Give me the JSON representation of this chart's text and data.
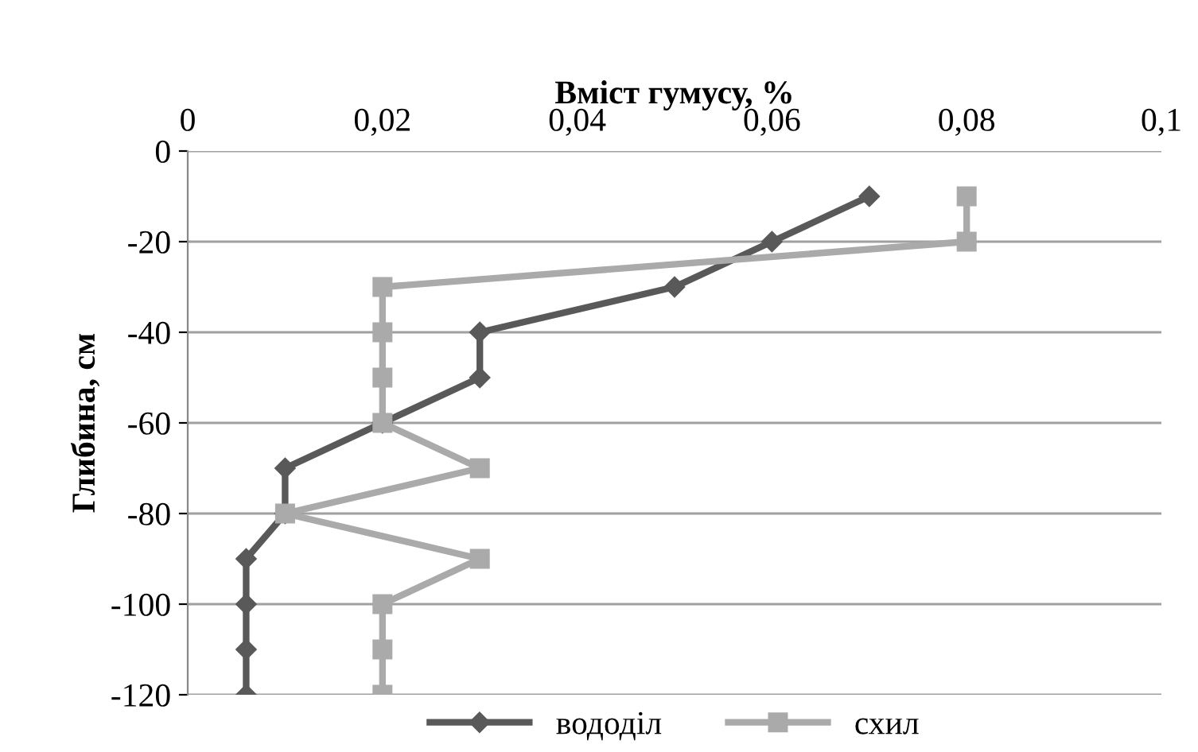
{
  "chart_data": {
    "type": "line",
    "xlabel": "Вміст гумусу, %",
    "ylabel": "Глибина, см",
    "xlim": [
      0,
      0.1
    ],
    "xticks": [
      0,
      {
        "value": 0.02,
        "label": "0,02"
      },
      {
        "value": 0.04,
        "label": "0,04"
      },
      {
        "value": 0.06,
        "label": "0,06"
      },
      {
        "value": 0.08,
        "label": "0,08"
      },
      {
        "value": 0.1,
        "label": "0,1"
      }
    ],
    "ylim": [
      -120,
      0
    ],
    "yticks": [
      -120,
      -100,
      -80,
      -60,
      -40,
      -20,
      0
    ],
    "grid": "y",
    "legend": "bottom",
    "line_style": "solid",
    "series": [
      {
        "name": "вододіл",
        "color": "#595959",
        "marker": "diamond",
        "x": [
          0.07,
          0.06,
          0.05,
          0.03,
          0.03,
          0.02,
          0.01,
          0.01,
          0.006,
          0.006,
          0.006,
          0.006
        ],
        "values": [
          -10,
          -20,
          -30,
          -40,
          -50,
          -60,
          -70,
          -80,
          -90,
          -100,
          -110,
          -120
        ]
      },
      {
        "name": "схил",
        "color": "#aaaaaa",
        "marker": "square",
        "x": [
          0.08,
          0.08,
          0.02,
          0.02,
          0.02,
          0.02,
          0.03,
          0.01,
          0.03,
          0.02,
          0.02,
          0.02
        ],
        "values": [
          -10,
          -20,
          -30,
          -40,
          -50,
          -60,
          -70,
          -80,
          -90,
          -100,
          -110,
          -120
        ]
      }
    ]
  }
}
